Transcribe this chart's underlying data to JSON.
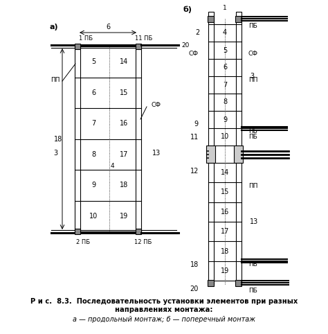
{
  "title_line1": "Р и с.  8.3.  Последовательность установки элементов при разных",
  "title_line2": "направлениях монтажа:",
  "subtitle": "а — продольный монтаж; б — поперечный монтаж",
  "bg_color": "#ffffff"
}
